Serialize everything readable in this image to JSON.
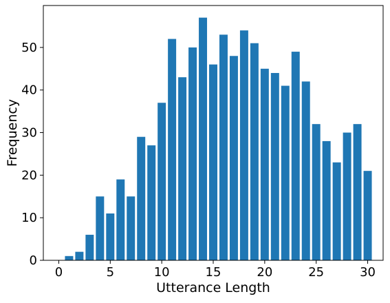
{
  "chart_data": {
    "type": "bar",
    "title": "",
    "xlabel": "Utterance Length",
    "ylabel": "Frequency",
    "bar_color": "#1f77b4",
    "grid": false,
    "x": [
      1,
      2,
      3,
      4,
      5,
      6,
      7,
      8,
      9,
      10,
      11,
      12,
      13,
      14,
      15,
      16,
      17,
      18,
      19,
      20,
      21,
      22,
      23,
      24,
      25,
      26,
      27,
      28,
      29,
      30
    ],
    "values": [
      1,
      2,
      6,
      15,
      11,
      19,
      15,
      29,
      27,
      37,
      52,
      43,
      50,
      57,
      46,
      53,
      48,
      54,
      51,
      45,
      44,
      41,
      49,
      42,
      32,
      28,
      23,
      30,
      32,
      21
    ],
    "xlim": [
      -1.5,
      31.5
    ],
    "ylim": [
      0,
      59.85
    ],
    "xticks": [
      0,
      5,
      10,
      15,
      20,
      25,
      30
    ],
    "yticks": [
      0,
      10,
      20,
      30,
      40,
      50
    ]
  }
}
